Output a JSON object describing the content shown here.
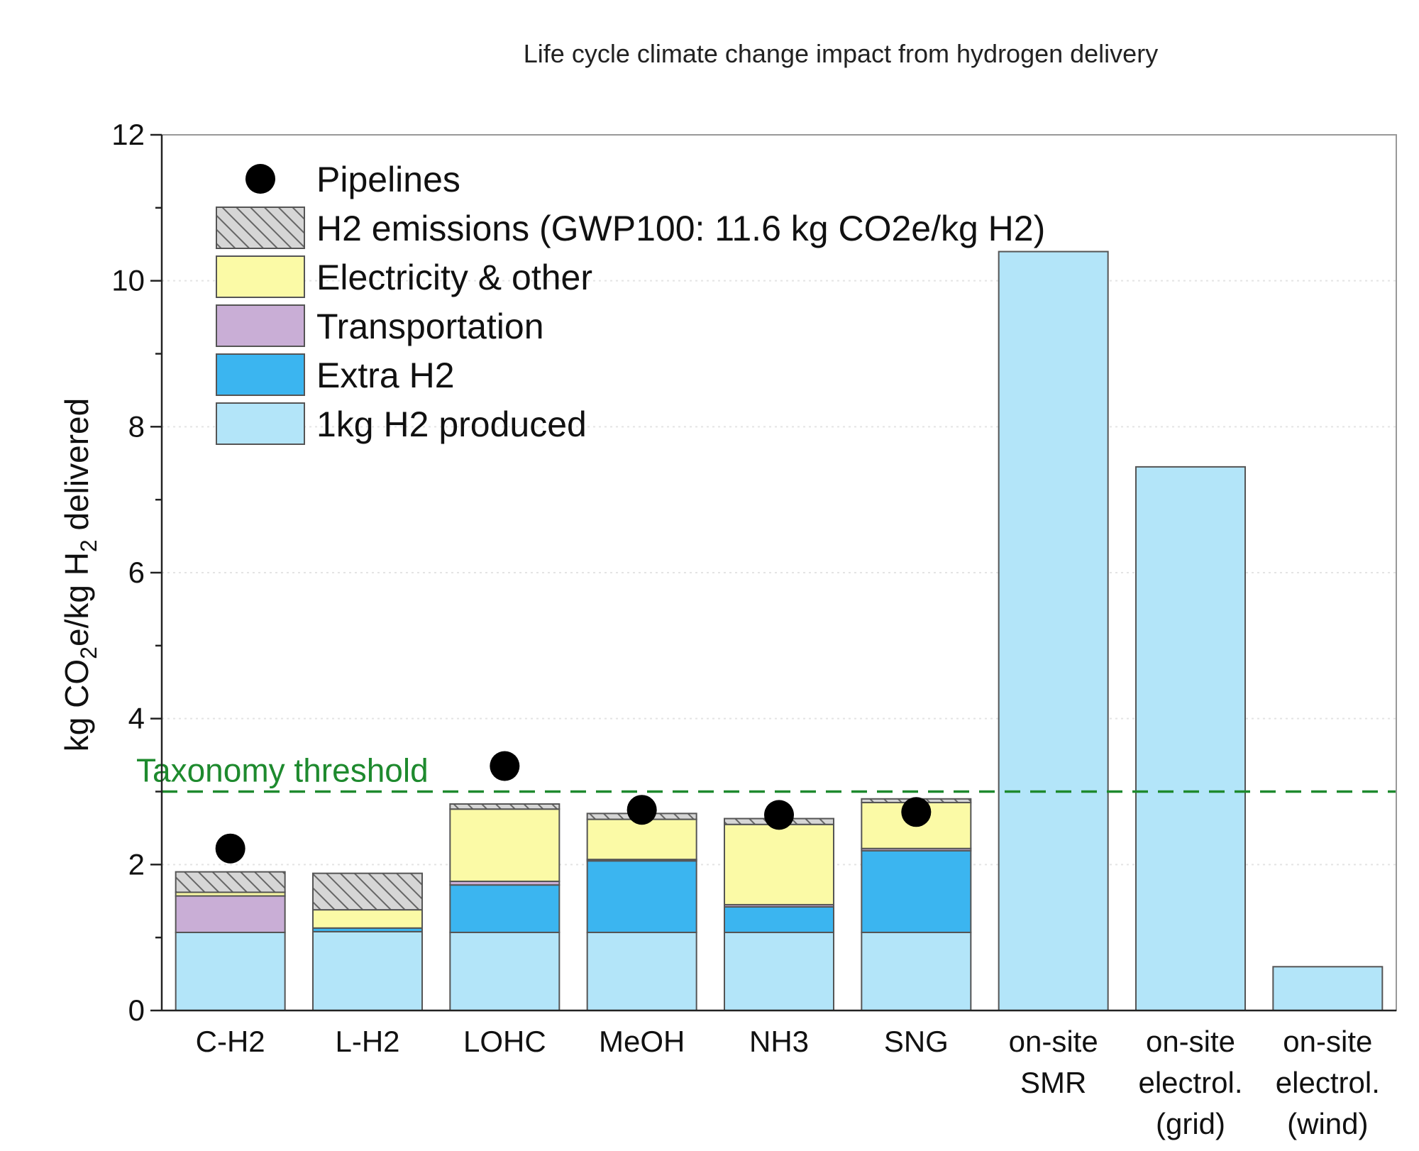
{
  "chart_data": {
    "type": "bar",
    "stacked": true,
    "title": "Life cycle climate change impact from hydrogen delivery",
    "ylabel": "kg CO2e/kg H2 delivered",
    "ylabel_parts": [
      "kg CO",
      "2",
      "e/kg H",
      "2",
      " delivered"
    ],
    "ylim": [
      0,
      12
    ],
    "yticks": [
      0,
      2,
      4,
      6,
      8,
      10,
      12
    ],
    "grid": true,
    "legend_position": "top-left",
    "categories": [
      [
        "C-H2"
      ],
      [
        "L-H2"
      ],
      [
        "LOHC"
      ],
      [
        "MeOH"
      ],
      [
        "NH3"
      ],
      [
        "SNG"
      ],
      [
        "on-site",
        "SMR"
      ],
      [
        "on-site",
        "electrol.",
        "(grid)"
      ],
      [
        "on-site",
        "electrol.",
        "(wind)"
      ]
    ],
    "series": [
      {
        "name": "1kg H2 produced",
        "color": "#b3e5f9",
        "values": [
          1.07,
          1.08,
          1.07,
          1.07,
          1.07,
          1.07,
          10.4,
          7.45,
          0.6
        ]
      },
      {
        "name": "Extra H2",
        "color": "#3bb5f0",
        "values": [
          0.0,
          0.05,
          0.65,
          0.98,
          0.35,
          1.12,
          0,
          0,
          0
        ]
      },
      {
        "name": "Transportation",
        "color": "#c9aed6",
        "values": [
          0.5,
          0.0,
          0.05,
          0.02,
          0.03,
          0.03,
          0,
          0,
          0
        ]
      },
      {
        "name": "Electricity & other",
        "color": "#fbfaa6",
        "values": [
          0.05,
          0.25,
          0.99,
          0.55,
          1.1,
          0.63,
          0,
          0,
          0
        ]
      },
      {
        "name": "H2 emissions (GWP100: 11.6 kg CO2e/kg H2)",
        "color": "#cccccc",
        "hatched": true,
        "values": [
          0.28,
          0.5,
          0.07,
          0.08,
          0.08,
          0.05,
          0,
          0,
          0
        ]
      }
    ],
    "markers": {
      "name": "Pipelines",
      "color": "#000000",
      "values": [
        2.22,
        null,
        3.35,
        2.75,
        2.68,
        2.72,
        null,
        null,
        null
      ]
    },
    "threshold": {
      "label": "Taxonomy threshold",
      "value": 3.0,
      "color": "#1e8a2e"
    },
    "legend_order": [
      "Pipelines",
      "H2 emissions (GWP100: 11.6 kg CO2e/kg H2)",
      "Electricity & other",
      "Transportation",
      "Extra H2",
      "1kg H2 produced"
    ]
  }
}
